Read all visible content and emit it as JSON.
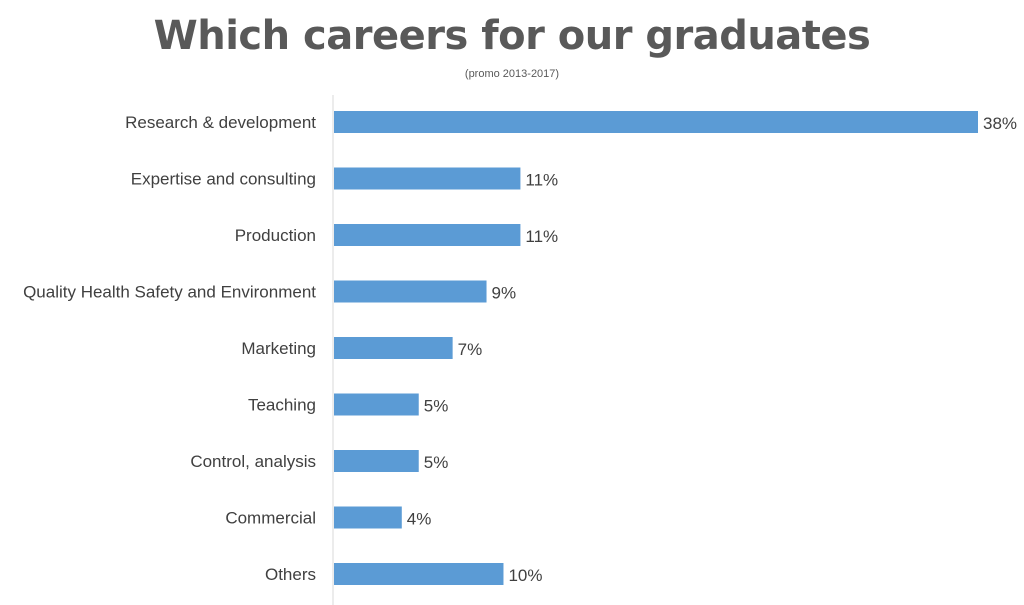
{
  "chart_data": {
    "type": "bar",
    "orientation": "horizontal",
    "title": "Which careers for our graduates",
    "subtitle": "(promo 2013-2017)",
    "categories": [
      "Research & development",
      "Expertise and consulting",
      "Production",
      "Quality Health Safety and Environment",
      "Marketing",
      "Teaching",
      "Control, analysis",
      "Commercial",
      "Others"
    ],
    "values": [
      38,
      11,
      11,
      9,
      7,
      5,
      5,
      4,
      10
    ],
    "value_labels": [
      "38%",
      "11%",
      "11%",
      "9%",
      "7%",
      "5%",
      "5%",
      "4%",
      "10%"
    ],
    "value_unit": "%",
    "xlim": [
      0,
      40
    ],
    "grid": false,
    "legend": "none",
    "bar_color": "#5b9bd5",
    "axis_color": "#d9d9d9",
    "text_color": "#404040"
  }
}
